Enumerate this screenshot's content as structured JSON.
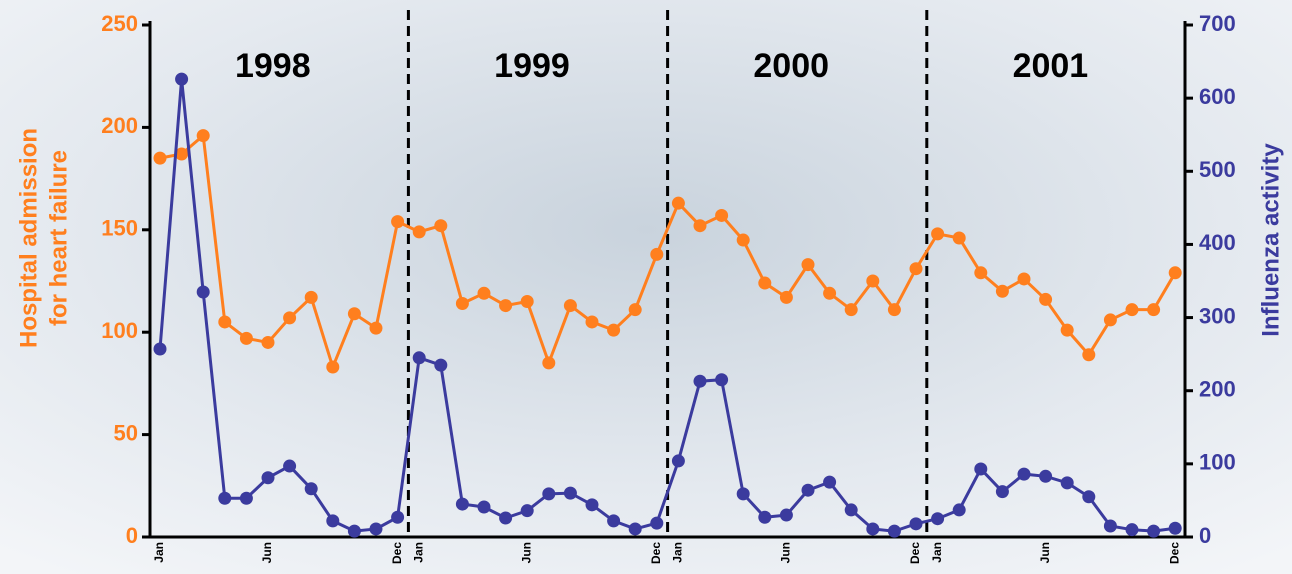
{
  "chart_data": {
    "type": "line",
    "categories": [
      "Jan",
      null,
      null,
      null,
      null,
      "Jun",
      null,
      null,
      null,
      null,
      null,
      "Dec",
      "Jan",
      null,
      null,
      null,
      null,
      "Jun",
      null,
      null,
      null,
      null,
      null,
      "Dec",
      "Jan",
      null,
      null,
      null,
      null,
      "Jun",
      null,
      null,
      null,
      null,
      null,
      "Dec",
      "Jan",
      null,
      null,
      null,
      null,
      "Jun",
      null,
      null,
      null,
      null,
      null,
      "Dec"
    ],
    "year_labels": [
      "1998",
      "1999",
      "2000",
      "2001"
    ],
    "y_label": [
      "Hospital admission",
      "for heart failure"
    ],
    "y2_label": "Influenza activity",
    "ylim": [
      0,
      250
    ],
    "yticks": [
      0,
      50,
      100,
      150,
      200,
      250
    ],
    "y2lim": [
      0,
      700
    ],
    "y2ticks": [
      0,
      100,
      200,
      300,
      400,
      500,
      600,
      700
    ],
    "series": [
      {
        "name": "Hospital admission for heart failure",
        "color": "#ff7f1e",
        "axis": "y",
        "values": [
          185,
          187,
          196,
          105,
          97,
          95,
          107,
          117,
          83,
          109,
          102,
          154,
          149,
          152,
          114,
          119,
          113,
          115,
          85,
          113,
          105,
          101,
          111,
          138,
          163,
          152,
          157,
          145,
          124,
          117,
          133,
          119,
          111,
          125,
          111,
          131,
          148,
          146,
          129,
          120,
          126,
          116,
          101,
          89,
          106,
          111,
          111,
          129
        ]
      },
      {
        "name": "Influenza activity",
        "color": "#3b3b9e",
        "axis": "y2",
        "values": [
          257,
          626,
          335,
          53,
          53,
          81,
          97,
          66,
          22,
          8,
          11,
          27,
          245,
          235,
          45,
          41,
          26,
          36,
          59,
          60,
          44,
          22,
          11,
          19,
          104,
          213,
          215,
          59,
          27,
          30,
          64,
          75,
          37,
          11,
          8,
          18,
          25,
          37,
          93,
          62,
          86,
          83,
          74,
          55,
          15,
          10,
          8,
          12
        ]
      }
    ]
  }
}
